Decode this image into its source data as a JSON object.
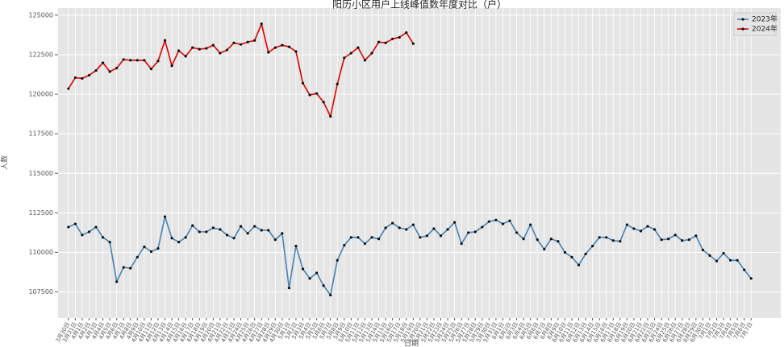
{
  "chart_data": {
    "type": "line",
    "title": "阳历小区用户上线峰值数年度对比（户）",
    "x_label": "日期",
    "y_label": "人数",
    "categories": [
      "3月30日",
      "3月31日",
      "4月1日",
      "4月2日",
      "4月3日",
      "4月4日",
      "4月5日",
      "4月6日",
      "4月7日",
      "4月8日",
      "4月9日",
      "4月10日",
      "4月11日",
      "4月12日",
      "4月13日",
      "4月14日",
      "4月15日",
      "4月16日",
      "4月17日",
      "4月18日",
      "4月19日",
      "4月20日",
      "4月21日",
      "4月22日",
      "4月23日",
      "4月24日",
      "4月25日",
      "4月26日",
      "4月27日",
      "4月28日",
      "4月29日",
      "4月30日",
      "5月1日",
      "5月2日",
      "5月3日",
      "5月4日",
      "5月5日",
      "5月6日",
      "5月7日",
      "5月8日",
      "5月9日",
      "5月10日",
      "5月11日",
      "5月12日",
      "5月13日",
      "5月14日",
      "5月15日",
      "5月16日",
      "5月17日",
      "5月18日",
      "5月19日",
      "5月20日",
      "5月21日",
      "5月22日",
      "5月23日",
      "5月24日",
      "5月25日",
      "5月26日",
      "5月27日",
      "5月28日",
      "5月29日",
      "5月30日",
      "5月31日",
      "6月1日",
      "6月2日",
      "6月3日",
      "6月4日",
      "6月5日",
      "6月6日",
      "6月7日",
      "6月8日",
      "6月9日",
      "6月10日",
      "6月11日",
      "6月12日",
      "6月13日",
      "6月14日",
      "6月15日",
      "6月16日",
      "6月17日",
      "6月18日",
      "6月19日",
      "6月20日",
      "6月21日",
      "6月22日",
      "6月23日",
      "6月24日",
      "6月25日",
      "6月26日",
      "6月27日",
      "6月28日",
      "6月29日",
      "6月30日",
      "7月1日",
      "7月2日",
      "7月3日",
      "7月4日",
      "7月5日",
      "7月6日",
      "7月7日"
    ],
    "series": [
      {
        "name": "2023年",
        "color": "#4682b4",
        "values": [
          111600,
          111800,
          111100,
          111300,
          111600,
          110950,
          110650,
          108150,
          109050,
          109000,
          109700,
          110350,
          110050,
          110250,
          112250,
          110900,
          110650,
          110950,
          111700,
          111300,
          111300,
          111550,
          111450,
          111100,
          110900,
          111650,
          111200,
          111650,
          111400,
          111400,
          110800,
          111200,
          107750,
          110400,
          108950,
          108350,
          108700,
          107900,
          107300,
          109500,
          110450,
          110950,
          110950,
          110550,
          110950,
          110850,
          111550,
          111850,
          111550,
          111450,
          111750,
          110950,
          111050,
          111500,
          111050,
          111450,
          111900,
          110550,
          111250,
          111300,
          111600,
          111950,
          112050,
          111800,
          112000,
          111250,
          110850,
          111750,
          110800,
          110200,
          110850,
          110700,
          110000,
          109700,
          109200,
          109900,
          110400,
          110950,
          110950,
          110750,
          110700,
          111750,
          111500,
          111350,
          111650,
          111450,
          110800,
          110850,
          111100,
          110750,
          110800,
          111050,
          110150,
          109800,
          109450,
          109950,
          109500,
          109500,
          108900,
          108350
        ]
      },
      {
        "name": "2024年",
        "color": "#e00000",
        "values": [
          120350,
          121050,
          121000,
          121200,
          121500,
          121990,
          121430,
          121650,
          122200,
          122150,
          122150,
          122150,
          121600,
          122100,
          123400,
          121800,
          122750,
          122400,
          122950,
          122850,
          122900,
          123100,
          122600,
          122800,
          123250,
          123150,
          123300,
          123400,
          124450,
          122650,
          122950,
          123100,
          123000,
          122700,
          120700,
          119950,
          120050,
          119500,
          118600,
          120650,
          122300,
          122600,
          122950,
          122150,
          122600,
          123300,
          123250,
          123500,
          123600,
          123900,
          123200,
          null,
          null,
          null,
          null,
          null,
          null,
          null,
          null,
          null,
          null,
          null,
          null,
          null,
          null,
          null,
          null,
          null,
          null,
          null,
          null,
          null,
          null,
          null,
          null,
          null,
          null,
          null,
          null,
          null,
          null,
          null,
          null,
          null,
          null,
          null,
          null,
          null,
          null,
          null,
          null,
          null,
          null,
          null,
          null,
          null,
          null,
          null,
          null,
          null
        ]
      }
    ],
    "marker_color": "#111111",
    "ylim": [
      105850,
      125450
    ],
    "yticks": [
      107500,
      110000,
      112500,
      115000,
      117500,
      120000,
      122500,
      125000
    ],
    "grid": true,
    "legend": "upper right"
  }
}
